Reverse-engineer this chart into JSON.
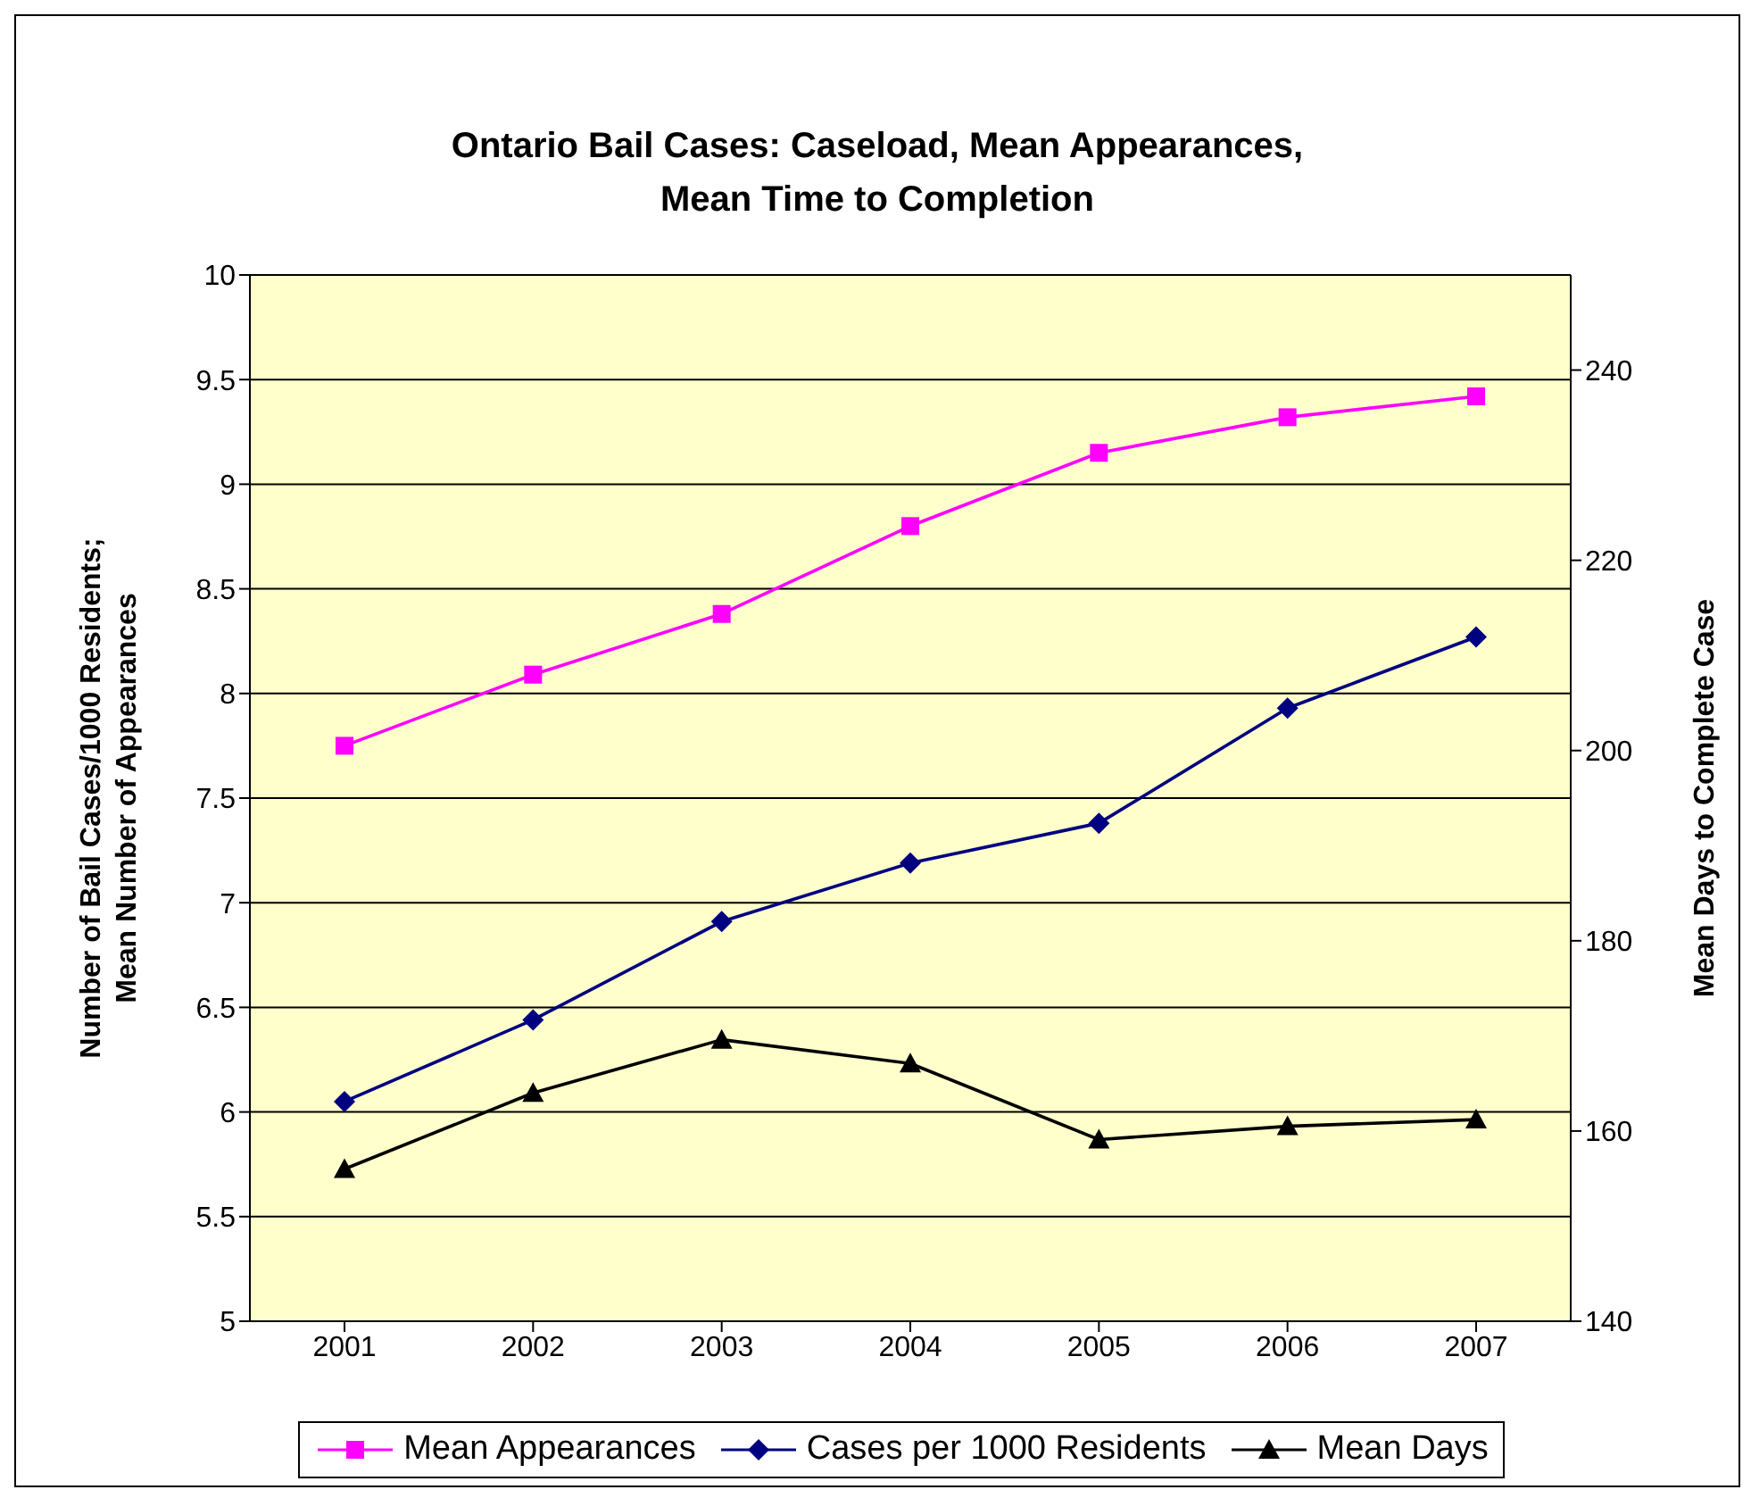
{
  "chart_data": {
    "type": "line",
    "title": "Ontario Bail Cases: Caseload, Mean Appearances,\nMean Time to Completion",
    "ylabel": "Number of Bail Cases/1000 Residents;\nMean Number of Appearances",
    "y2label": "Mean Days to Complete Case",
    "categories": [
      "2001",
      "2002",
      "2003",
      "2004",
      "2005",
      "2006",
      "2007"
    ],
    "series": [
      {
        "name": "Mean Appearances",
        "color": "#ff00ff",
        "marker": "square",
        "values": [
          7.75,
          8.09,
          8.38,
          8.8,
          9.15,
          9.32,
          9.42
        ]
      },
      {
        "name": "Cases per 1000 Residents",
        "color": "#000080",
        "marker": "diamond",
        "values": [
          6.05,
          6.44,
          6.91,
          7.19,
          7.38,
          7.93,
          8.27
        ]
      },
      {
        "name": "Mean Days",
        "color": "#000000",
        "marker": "triangle",
        "axis": "y2",
        "values": [
          156,
          164,
          169.6,
          167.1,
          159.1,
          160.5,
          161.2
        ]
      }
    ],
    "ylim": [
      5,
      10
    ],
    "yticks": [
      5,
      5.5,
      6,
      6.5,
      7,
      7.5,
      8,
      8.5,
      9,
      9.5,
      10
    ],
    "y2lim": [
      140,
      250
    ],
    "y2ticks": [
      140,
      160,
      180,
      200,
      220,
      240
    ],
    "grid": "y",
    "legend": "bottom",
    "line_style": "solid"
  }
}
